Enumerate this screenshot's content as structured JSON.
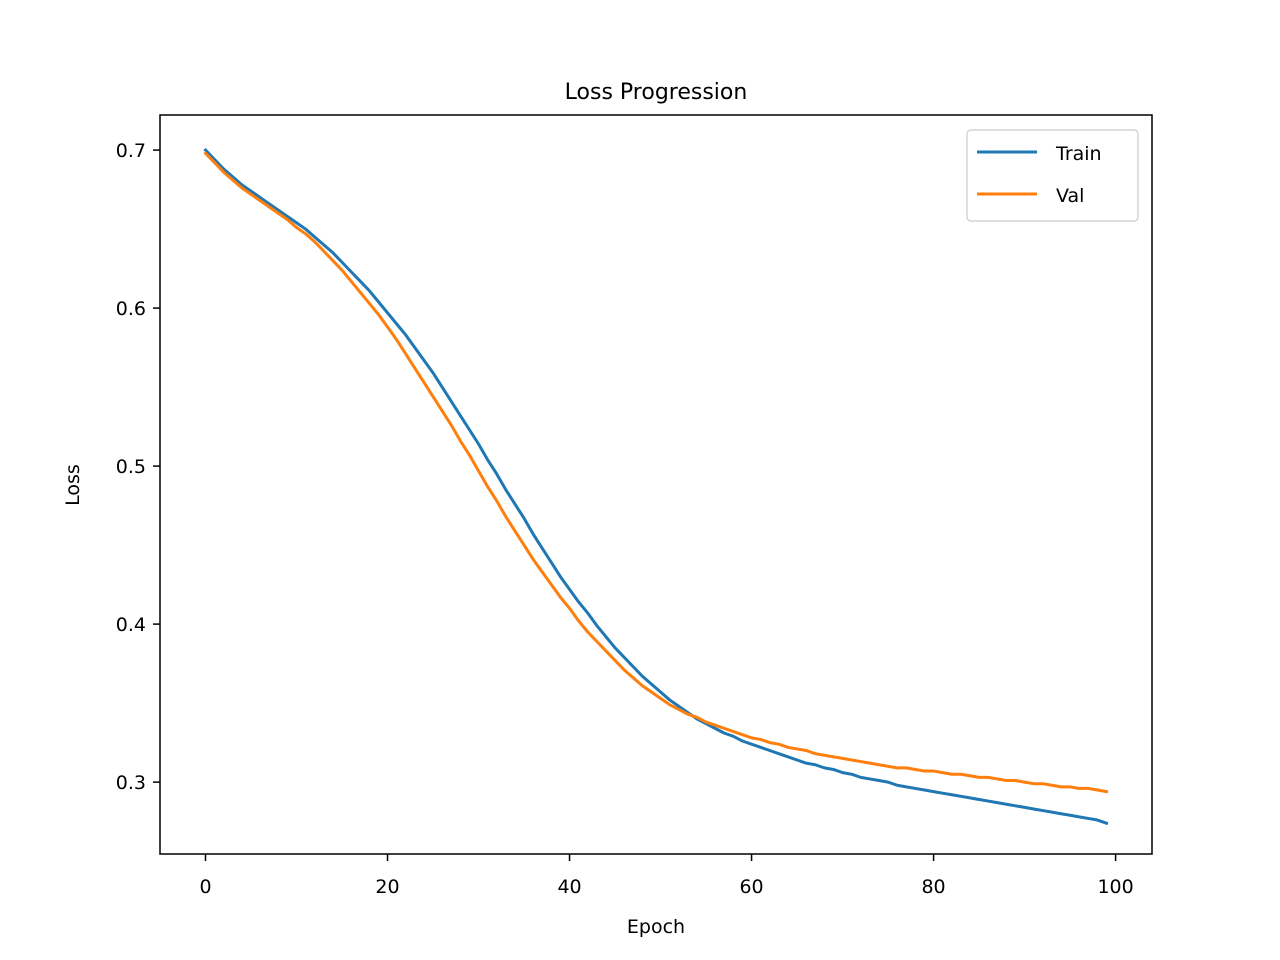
{
  "chart_data": {
    "type": "line",
    "title": "Loss Progression",
    "xlabel": "Epoch",
    "ylabel": "Loss",
    "xlim": [
      -5,
      104
    ],
    "ylim": [
      0.2545,
      0.7222
    ],
    "xticks": [
      0,
      20,
      40,
      60,
      80,
      100
    ],
    "xtick_labels": [
      "0",
      "20",
      "40",
      "60",
      "80",
      "100"
    ],
    "yticks": [
      0.3,
      0.4,
      0.5,
      0.6,
      0.7
    ],
    "ytick_labels": [
      "0.3",
      "0.4",
      "0.5",
      "0.6",
      "0.7"
    ],
    "grid": false,
    "legend_position": "upper right",
    "series": [
      {
        "name": "Train",
        "color": "#1f77b4",
        "x": [
          0,
          1,
          2,
          3,
          4,
          5,
          6,
          7,
          8,
          9,
          10,
          11,
          12,
          13,
          14,
          15,
          16,
          17,
          18,
          19,
          20,
          21,
          22,
          23,
          24,
          25,
          26,
          27,
          28,
          29,
          30,
          31,
          32,
          33,
          34,
          35,
          36,
          37,
          38,
          39,
          40,
          41,
          42,
          43,
          44,
          45,
          46,
          47,
          48,
          49,
          50,
          51,
          52,
          53,
          54,
          55,
          56,
          57,
          58,
          59,
          60,
          61,
          62,
          63,
          64,
          65,
          66,
          67,
          68,
          69,
          70,
          71,
          72,
          73,
          74,
          75,
          76,
          77,
          78,
          79,
          80,
          81,
          82,
          83,
          84,
          85,
          86,
          87,
          88,
          89,
          90,
          91,
          92,
          93,
          94,
          95,
          96,
          97,
          98,
          99
        ],
        "values": [
          0.7,
          0.694,
          0.688,
          0.683,
          0.678,
          0.674,
          0.67,
          0.666,
          0.662,
          0.658,
          0.654,
          0.65,
          0.645,
          0.64,
          0.635,
          0.629,
          0.623,
          0.617,
          0.611,
          0.604,
          0.597,
          0.59,
          0.583,
          0.575,
          0.567,
          0.559,
          0.55,
          0.541,
          0.532,
          0.523,
          0.514,
          0.504,
          0.495,
          0.485,
          0.476,
          0.467,
          0.457,
          0.448,
          0.439,
          0.43,
          0.422,
          0.414,
          0.407,
          0.399,
          0.392,
          0.385,
          0.379,
          0.373,
          0.367,
          0.362,
          0.357,
          0.352,
          0.348,
          0.344,
          0.34,
          0.337,
          0.334,
          0.331,
          0.329,
          0.326,
          0.324,
          0.322,
          0.32,
          0.318,
          0.316,
          0.314,
          0.312,
          0.311,
          0.309,
          0.308,
          0.306,
          0.305,
          0.303,
          0.302,
          0.301,
          0.3,
          0.298,
          0.297,
          0.296,
          0.295,
          0.294,
          0.293,
          0.292,
          0.291,
          0.29,
          0.289,
          0.288,
          0.287,
          0.286,
          0.285,
          0.284,
          0.283,
          0.282,
          0.281,
          0.28,
          0.279,
          0.278,
          0.277,
          0.276,
          0.274
        ]
      },
      {
        "name": "Val",
        "color": "#ff7f0e",
        "x": [
          0,
          1,
          2,
          3,
          4,
          5,
          6,
          7,
          8,
          9,
          10,
          11,
          12,
          13,
          14,
          15,
          16,
          17,
          18,
          19,
          20,
          21,
          22,
          23,
          24,
          25,
          26,
          27,
          28,
          29,
          30,
          31,
          32,
          33,
          34,
          35,
          36,
          37,
          38,
          39,
          40,
          41,
          42,
          43,
          44,
          45,
          46,
          47,
          48,
          49,
          50,
          51,
          52,
          53,
          54,
          55,
          56,
          57,
          58,
          59,
          60,
          61,
          62,
          63,
          64,
          65,
          66,
          67,
          68,
          69,
          70,
          71,
          72,
          73,
          74,
          75,
          76,
          77,
          78,
          79,
          80,
          81,
          82,
          83,
          84,
          85,
          86,
          87,
          88,
          89,
          90,
          91,
          92,
          93,
          94,
          95,
          96,
          97,
          98,
          99
        ],
        "values": [
          0.698,
          0.692,
          0.686,
          0.681,
          0.676,
          0.672,
          0.668,
          0.664,
          0.66,
          0.656,
          0.651,
          0.647,
          0.642,
          0.636,
          0.63,
          0.624,
          0.617,
          0.61,
          0.603,
          0.596,
          0.588,
          0.58,
          0.571,
          0.562,
          0.553,
          0.544,
          0.535,
          0.526,
          0.516,
          0.507,
          0.497,
          0.487,
          0.478,
          0.468,
          0.459,
          0.45,
          0.441,
          0.433,
          0.425,
          0.417,
          0.41,
          0.402,
          0.395,
          0.389,
          0.383,
          0.377,
          0.371,
          0.366,
          0.361,
          0.357,
          0.353,
          0.349,
          0.346,
          0.343,
          0.341,
          0.338,
          0.336,
          0.334,
          0.332,
          0.33,
          0.328,
          0.327,
          0.325,
          0.324,
          0.322,
          0.321,
          0.32,
          0.318,
          0.317,
          0.316,
          0.315,
          0.314,
          0.313,
          0.312,
          0.311,
          0.31,
          0.309,
          0.309,
          0.308,
          0.307,
          0.307,
          0.306,
          0.305,
          0.305,
          0.304,
          0.303,
          0.303,
          0.302,
          0.301,
          0.301,
          0.3,
          0.299,
          0.299,
          0.298,
          0.297,
          0.297,
          0.296,
          0.296,
          0.295,
          0.294
        ]
      }
    ]
  }
}
